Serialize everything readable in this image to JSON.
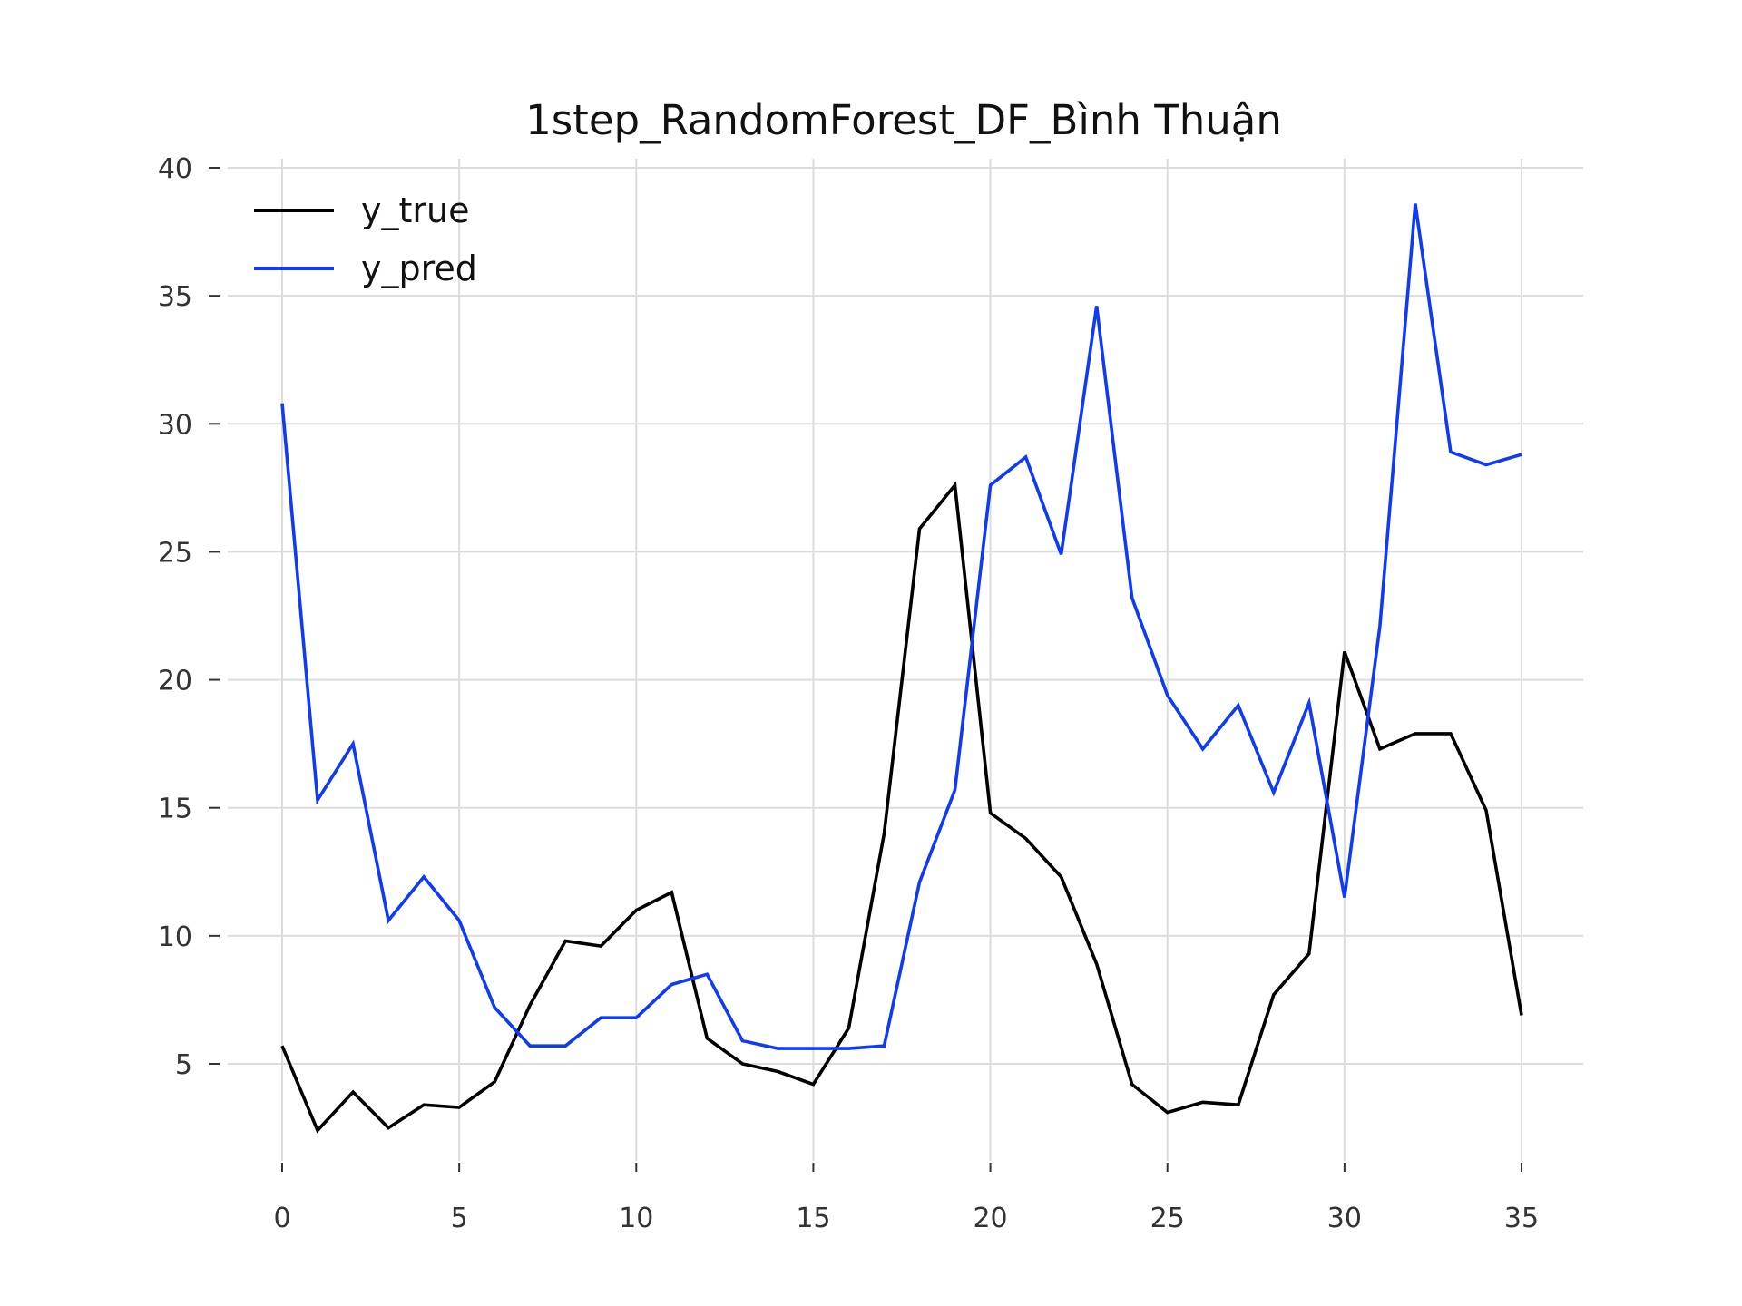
{
  "chart_data": {
    "type": "line",
    "title": "1step_RandomForest_DF_Bình Thuận",
    "xlabel": "",
    "ylabel": "",
    "xlim": [
      -2,
      36.7
    ],
    "ylim": [
      1,
      40.5
    ],
    "xticks": [
      0,
      5,
      10,
      15,
      20,
      25,
      30,
      35
    ],
    "yticks": [
      5,
      10,
      15,
      20,
      25,
      30,
      35,
      40
    ],
    "grid": true,
    "legend_position": "top-left",
    "x": [
      0,
      1,
      2,
      3,
      4,
      5,
      6,
      7,
      8,
      9,
      10,
      11,
      12,
      13,
      14,
      15,
      16,
      17,
      18,
      19,
      20,
      21,
      22,
      23,
      24,
      25,
      26,
      27,
      28,
      29,
      30,
      31,
      32,
      33,
      34,
      35
    ],
    "series": [
      {
        "name": "y_true",
        "color": "#000000",
        "values": [
          5.7,
          2.4,
          3.9,
          2.5,
          3.4,
          3.3,
          4.3,
          7.3,
          9.8,
          9.6,
          11.0,
          11.7,
          6.0,
          5.0,
          4.7,
          4.2,
          6.4,
          14.0,
          25.9,
          27.6,
          14.8,
          13.8,
          12.3,
          8.9,
          4.2,
          3.1,
          3.5,
          3.4,
          7.7,
          9.3,
          21.1,
          17.3,
          17.9,
          17.9,
          14.9,
          6.9
        ]
      },
      {
        "name": "y_pred",
        "color": "#0f3bf5",
        "values": [
          30.8,
          15.3,
          17.5,
          10.6,
          12.3,
          10.6,
          7.2,
          5.7,
          5.7,
          6.8,
          6.8,
          8.1,
          8.5,
          5.9,
          5.6,
          5.6,
          5.6,
          5.7,
          12.1,
          15.7,
          27.6,
          28.7,
          24.9,
          34.6,
          23.2,
          19.4,
          17.3,
          19.0,
          15.6,
          19.1,
          11.5,
          22.1,
          38.6,
          28.9,
          28.4,
          28.8
        ]
      }
    ]
  }
}
